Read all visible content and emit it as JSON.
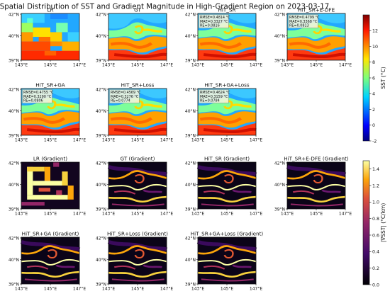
{
  "chart_data": {
    "type": "heatmap",
    "title": "Spatial Distribution of SST and Gradient Magnitude in High-Gradient Region on 2023-03-17",
    "xlabel": "",
    "ylabel": "",
    "xticks": [
      "143°E",
      "145°E",
      "147°E"
    ],
    "yticks": [
      "42°N",
      "40°N",
      "39°N"
    ],
    "xlim": [
      143,
      147
    ],
    "ylim": [
      39,
      42
    ],
    "sst_panels": [
      {
        "name": "LR",
        "metrics": null
      },
      {
        "name": "GT",
        "metrics": null
      },
      {
        "name": "HiT_SR",
        "metrics": [
          "RMSE=0.4814 °C",
          "MAE=0.3327 °C",
          "RE=0.0816"
        ]
      },
      {
        "name": "HiT_SR+E-DFE",
        "metrics": [
          "RMSE=0.4799 °C",
          "MAE=0.3368 °C",
          "RE=0.0813"
        ]
      },
      {
        "name": "HiT_SR+GA",
        "metrics": [
          "RMSE=0.4755 °C",
          "MAE=0.3290 °C",
          "RE=0.0806"
        ]
      },
      {
        "name": "HiT_SR+Loss",
        "metrics": [
          "RMSE=0.4569 °C",
          "MAE=0.3276 °C",
          "RE=0.0774"
        ]
      },
      {
        "name": "HiT_SR+GA+Loss",
        "metrics": [
          "RMSE=0.4624 °C",
          "MAE=0.3159 °C",
          "RE=0.0784"
        ]
      }
    ],
    "gradient_panels": [
      {
        "name": "LR (Gradient)"
      },
      {
        "name": "GT (Gradient)"
      },
      {
        "name": "HiT_SR (Gradient)"
      },
      {
        "name": "HiT_SR+E-DFE (Gradient)"
      },
      {
        "name": "HiT_SR+GA (Gradient)"
      },
      {
        "name": "HiT_SR+Loss (Gradient)"
      },
      {
        "name": "HiT_SR+GA+Loss (Gradient)"
      }
    ],
    "sst_colorbar": {
      "label": "SST (°C)",
      "range": [
        -2,
        14
      ],
      "ticks": [
        "12",
        "10",
        "8",
        "6",
        "4",
        "2",
        "0",
        "-2"
      ],
      "colormap": "jet"
    },
    "gradient_colorbar": {
      "label": "|∇SST| (°C/km)",
      "range": [
        0,
        1.5
      ],
      "ticks": [
        "1.4",
        "1.2",
        "1.0",
        "0.8",
        "0.6",
        "0.4",
        "0.2",
        "0.0"
      ],
      "colormap": "inferno"
    }
  }
}
